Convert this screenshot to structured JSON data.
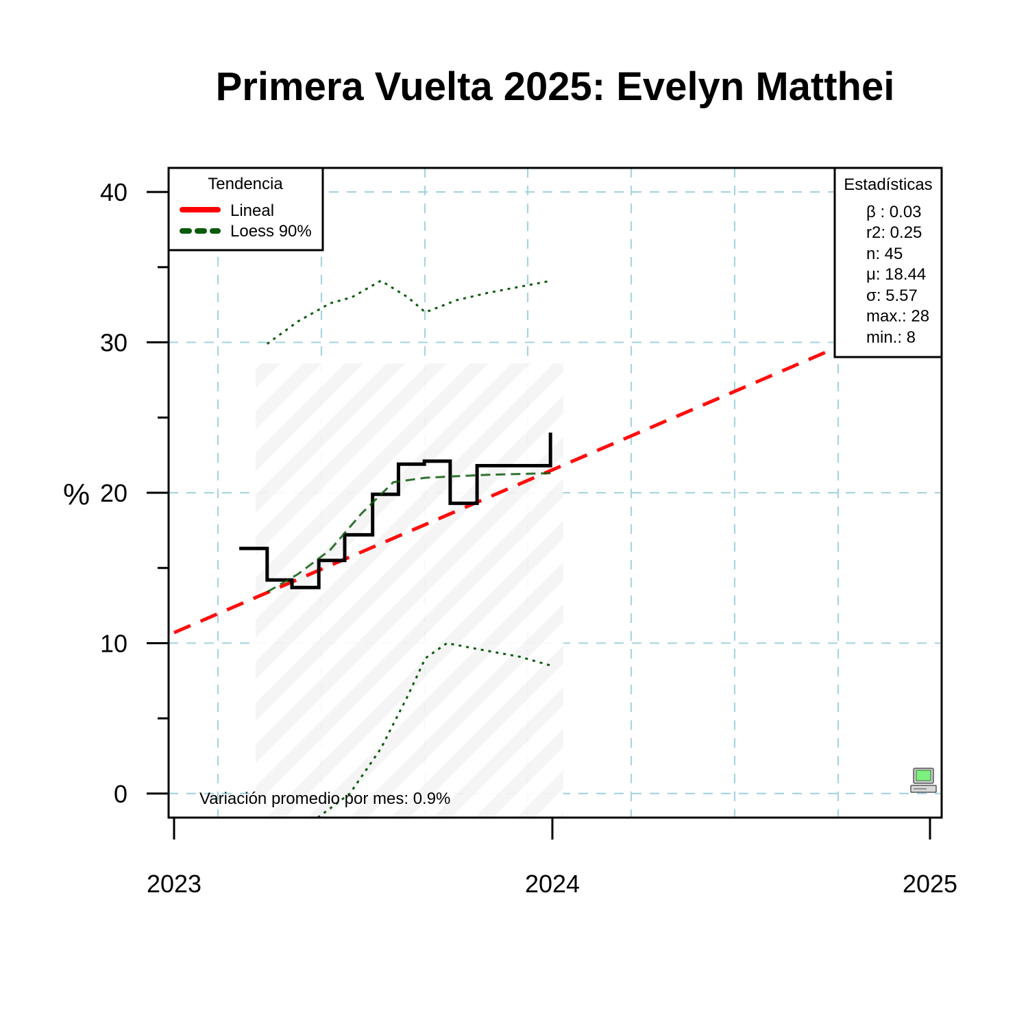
{
  "chart_data": {
    "type": "line",
    "title": "Primera Vuelta 2025: Evelyn Matthei",
    "ylabel": "%",
    "xlabel": "",
    "x_ticks": [
      "2023",
      "2024",
      "2025"
    ],
    "y_ticks": [
      "0",
      "10",
      "20",
      "30",
      "40"
    ],
    "xlim": [
      "2023-01-01",
      "2025-01-01"
    ],
    "ylim": [
      -1.6,
      41.6
    ],
    "grid": true,
    "legend": {
      "title": "Tendencia",
      "position": "top-left",
      "entries": [
        {
          "label": "Lineal",
          "color": "#ff0000",
          "style": "dashed"
        },
        {
          "label": "Loess 90%",
          "color": "#0b5a0b",
          "style": "dotted"
        }
      ]
    },
    "stats_box": {
      "title": "Estadísticas",
      "position": "top-right",
      "lines": [
        "β : 0.03",
        "r2: 0.25",
        "n: 45",
        "μ: 18.44",
        "σ: 5.57",
        "max.: 28",
        "min.: 8"
      ]
    },
    "note": "Variación promedio por mes: 0.9%",
    "colors": {
      "step": "#000000",
      "linear": "#ff0000",
      "loess": "#0b5a0b",
      "grid": "#a8d4e0",
      "band": "#f3f3f3"
    },
    "series": [
      {
        "kind": "step",
        "points": [
          [
            "2023-03-05",
            16.3
          ],
          [
            "2023-04-01",
            14.2
          ],
          [
            "2023-04-25",
            13.7
          ],
          [
            "2023-05-21",
            15.5
          ],
          [
            "2023-06-15",
            17.2
          ],
          [
            "2023-07-12",
            19.9
          ],
          [
            "2023-08-06",
            21.9
          ],
          [
            "2023-08-31",
            22.1
          ],
          [
            "2023-09-25",
            19.3
          ],
          [
            "2023-10-21",
            21.8
          ],
          [
            "2023-12-31",
            24.0
          ]
        ]
      },
      {
        "kind": "linear",
        "points": [
          [
            "2023-01-01",
            10.7
          ],
          [
            "2024-12-31",
            32.3
          ]
        ]
      },
      {
        "kind": "loess",
        "points": [
          [
            "2023-04-01",
            13.4
          ],
          [
            "2023-05-01",
            14.6
          ],
          [
            "2023-06-01",
            16.2
          ],
          [
            "2023-07-01",
            18.6
          ],
          [
            "2023-08-01",
            20.7
          ],
          [
            "2023-09-01",
            21.0
          ],
          [
            "2023-10-01",
            21.1
          ],
          [
            "2023-11-01",
            21.2
          ],
          [
            "2024-01-01",
            21.3
          ]
        ]
      },
      {
        "kind": "loess_upper",
        "points": [
          [
            "2023-04-01",
            29.9
          ],
          [
            "2023-05-01",
            31.4
          ],
          [
            "2023-06-01",
            32.6
          ],
          [
            "2023-06-22",
            33.0
          ],
          [
            "2023-07-20",
            34.1
          ],
          [
            "2023-08-15",
            33.0
          ],
          [
            "2023-09-01",
            32.0
          ],
          [
            "2023-10-01",
            32.8
          ],
          [
            "2023-11-01",
            33.3
          ],
          [
            "2024-01-01",
            34.1
          ]
        ]
      },
      {
        "kind": "loess_lower",
        "points": [
          [
            "2023-05-20",
            -1.6
          ],
          [
            "2023-06-20",
            0.0
          ],
          [
            "2023-07-20",
            3.0
          ],
          [
            "2023-08-15",
            6.5
          ],
          [
            "2023-09-01",
            9.0
          ],
          [
            "2023-09-22",
            10.0
          ],
          [
            "2023-10-22",
            9.6
          ],
          [
            "2023-12-01",
            9.1
          ],
          [
            "2024-01-01",
            8.5
          ]
        ]
      }
    ]
  }
}
